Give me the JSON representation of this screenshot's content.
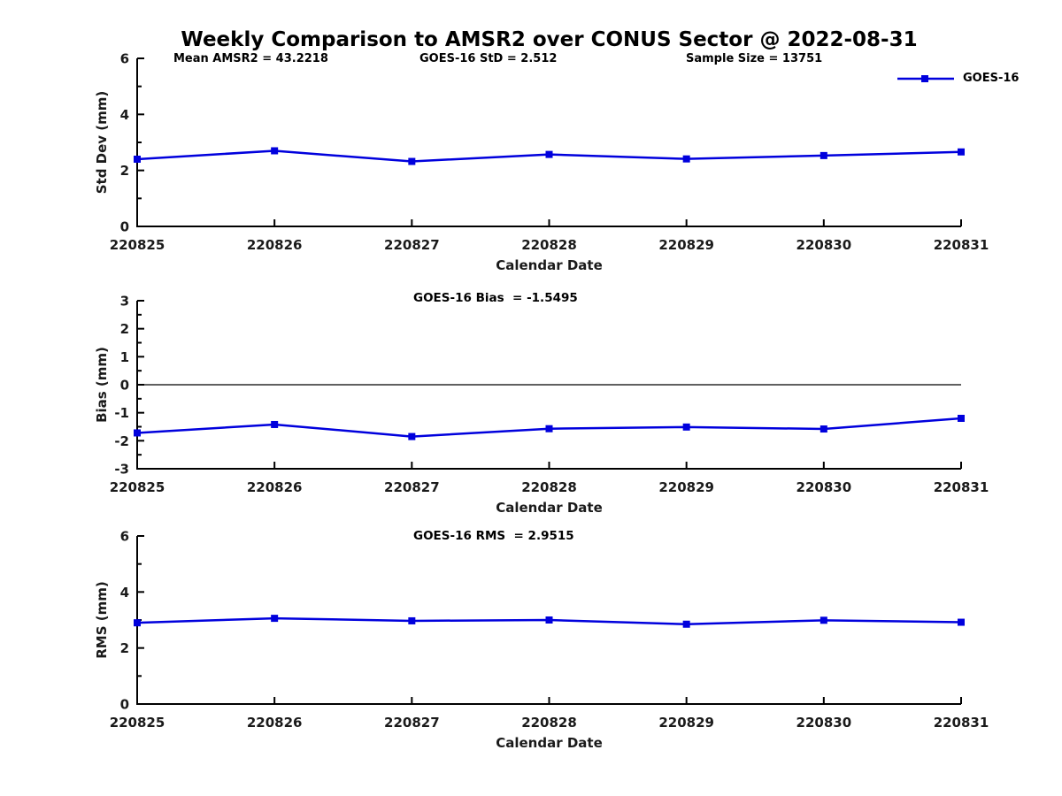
{
  "title": "Weekly Comparison to AMSR2 over CONUS Sector @ 2022-08-31",
  "legend": {
    "label": "GOES-16",
    "color": "#0000dd",
    "marker": "square",
    "position": "top-right"
  },
  "chart_data": [
    {
      "type": "line",
      "name": "std-dev",
      "x": [
        "220825",
        "220826",
        "220827",
        "220828",
        "220829",
        "220830",
        "220831"
      ],
      "series": [
        {
          "name": "GOES-16",
          "color": "#0000dd",
          "values": [
            2.4,
            2.7,
            2.32,
            2.57,
            2.41,
            2.53,
            2.66
          ]
        }
      ],
      "xlabel": "Calendar Date",
      "ylabel": "Std Dev (mm)",
      "ylim": [
        0,
        6
      ],
      "yticks": [
        0,
        2,
        4,
        6
      ],
      "minor_yticks": [
        1,
        3,
        5
      ],
      "zero_line": false,
      "grid": false,
      "annotations": [
        "Mean AMSR2 = 43.2218",
        "GOES-16 StD = 2.512",
        "Sample Size = 13751"
      ]
    },
    {
      "type": "line",
      "name": "bias",
      "x": [
        "220825",
        "220826",
        "220827",
        "220828",
        "220829",
        "220830",
        "220831"
      ],
      "series": [
        {
          "name": "GOES-16",
          "color": "#0000dd",
          "values": [
            -1.72,
            -1.42,
            -1.85,
            -1.57,
            -1.51,
            -1.58,
            -1.2
          ]
        }
      ],
      "xlabel": "Calendar Date",
      "ylabel": "Bias (mm)",
      "ylim": [
        -3,
        3
      ],
      "yticks": [
        -3,
        -2,
        -1,
        0,
        1,
        2,
        3
      ],
      "minor_yticks": [
        -2.5,
        -1.5,
        -0.5,
        0.5,
        1.5,
        2.5
      ],
      "zero_line": true,
      "grid": false,
      "annotation": "GOES-16 Bias  = -1.5495"
    },
    {
      "type": "line",
      "name": "rms",
      "x": [
        "220825",
        "220826",
        "220827",
        "220828",
        "220829",
        "220830",
        "220831"
      ],
      "series": [
        {
          "name": "GOES-16",
          "color": "#0000dd",
          "values": [
            2.9,
            3.06,
            2.97,
            3.0,
            2.85,
            2.99,
            2.92
          ]
        }
      ],
      "xlabel": "Calendar Date",
      "ylabel": "RMS (mm)",
      "ylim": [
        0,
        6
      ],
      "yticks": [
        0,
        2,
        4,
        6
      ],
      "minor_yticks": [
        1,
        3,
        5
      ],
      "zero_line": false,
      "grid": false,
      "annotation": "GOES-16 RMS  = 2.9515"
    }
  ]
}
